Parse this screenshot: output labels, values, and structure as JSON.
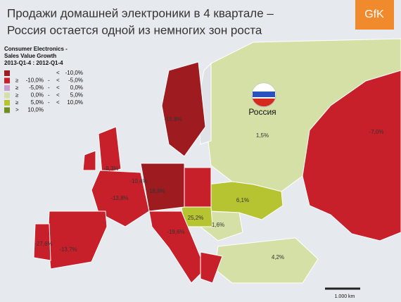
{
  "header": {
    "title_lines": [
      "Продажи домашней электроники в 4 квартале –",
      "Россия остается одной из немногих зон роста"
    ],
    "logo": "GfK"
  },
  "legend": {
    "title_lines": [
      "Consumer Electronics -",
      "Sales Value Growth",
      "2013-Q1-4 : 2012-Q1-4"
    ],
    "rows": [
      {
        "color": "#9e1b20",
        "op2": "<",
        "to": "-10,0%"
      },
      {
        "color": "#c8202a",
        "op1": "≥",
        "from": "-10,0%",
        "sep": "-",
        "op2": "<",
        "to": "-5,0%"
      },
      {
        "color": "#c9a0d0",
        "op1": "≥",
        "from": "-5,0%",
        "sep": "-",
        "op2": "<",
        "to": "0,0%"
      },
      {
        "color": "#d4e0a5",
        "op1": "≥",
        "from": "0,0%",
        "sep": "-",
        "op2": "<",
        "to": "5,0%"
      },
      {
        "color": "#b7c432",
        "op1": "≥",
        "from": "5,0%",
        "sep": "-",
        "op2": "<",
        "to": "10,0%"
      },
      {
        "color": "#6e8e1e",
        "op1": ">",
        "from": "10,0%"
      }
    ]
  },
  "map": {
    "country_label": "Россия",
    "region_labels": [
      "1,5%",
      "-7,0%",
      "6,1%",
      "1,6%",
      "4,2%",
      "25,2%",
      "-13,8%",
      "-13,7%",
      "-27,6%",
      "-8,3%",
      "-18,8%",
      "-15,8%",
      "-19,6%",
      "-10,4%"
    ],
    "scale": "1.000 km"
  }
}
